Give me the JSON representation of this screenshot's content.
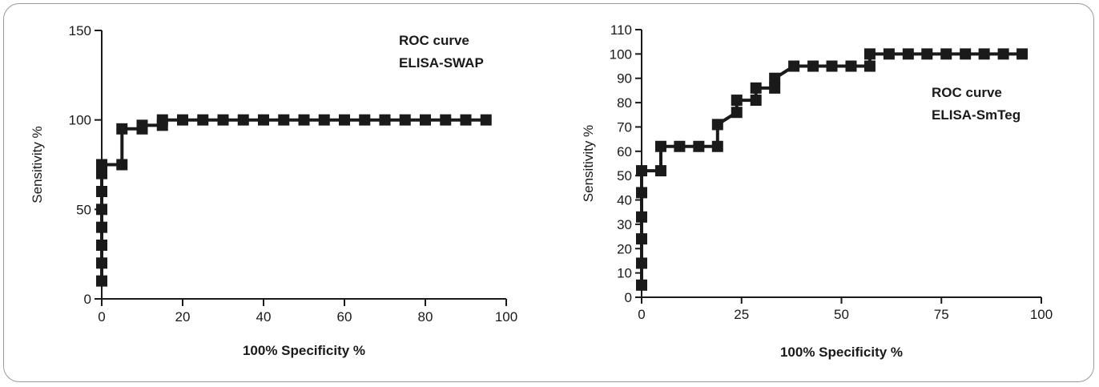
{
  "chart_data": [
    {
      "type": "line",
      "annotation": [
        "ROC curve",
        "ELISA-SWAP"
      ],
      "xlabel": "100% Specificity %",
      "ylabel": "Sensitivity %",
      "xlim": [
        0,
        100
      ],
      "ylim": [
        0,
        150
      ],
      "xticks": [
        0,
        20,
        40,
        60,
        80,
        100
      ],
      "yticks": [
        0,
        50,
        100,
        150
      ],
      "grid": false,
      "series": [
        {
          "x": [
            0,
            0,
            0,
            0,
            0,
            0,
            0,
            0,
            5,
            5,
            10,
            10,
            15,
            15,
            20,
            25,
            30,
            35,
            40,
            45,
            50,
            55,
            60,
            65,
            70,
            75,
            80,
            85,
            90,
            95
          ],
          "y": [
            10,
            20,
            30,
            40,
            50,
            60,
            70,
            75,
            75,
            95,
            95,
            97,
            97,
            100,
            100,
            100,
            100,
            100,
            100,
            100,
            100,
            100,
            100,
            100,
            100,
            100,
            100,
            100,
            100,
            100
          ]
        }
      ]
    },
    {
      "type": "line",
      "annotation": [
        "ROC curve",
        "ELISA-SmTeg"
      ],
      "xlabel": "100% Specificity %",
      "ylabel": "Sensitivity %",
      "xlim": [
        0,
        100
      ],
      "ylim": [
        0,
        110
      ],
      "xticks": [
        0,
        25,
        50,
        75,
        100
      ],
      "yticks": [
        0,
        10,
        20,
        30,
        40,
        50,
        60,
        70,
        80,
        90,
        100,
        110
      ],
      "grid": false,
      "series": [
        {
          "x": [
            0,
            0,
            0,
            0,
            0,
            0,
            4.8,
            4.8,
            9.5,
            14.3,
            19,
            19,
            23.8,
            23.8,
            28.6,
            28.6,
            33.3,
            33.3,
            38.1,
            42.9,
            47.6,
            52.4,
            57.1,
            57.1,
            61.9,
            66.7,
            71.4,
            76.2,
            81,
            85.7,
            90.5,
            95.2
          ],
          "y": [
            5,
            14,
            24,
            33,
            43,
            52,
            52,
            62,
            62,
            62,
            62,
            71,
            76,
            81,
            81,
            86,
            86,
            90,
            95,
            95,
            95,
            95,
            95,
            100,
            100,
            100,
            100,
            100,
            100,
            100,
            100,
            100
          ]
        }
      ]
    }
  ]
}
